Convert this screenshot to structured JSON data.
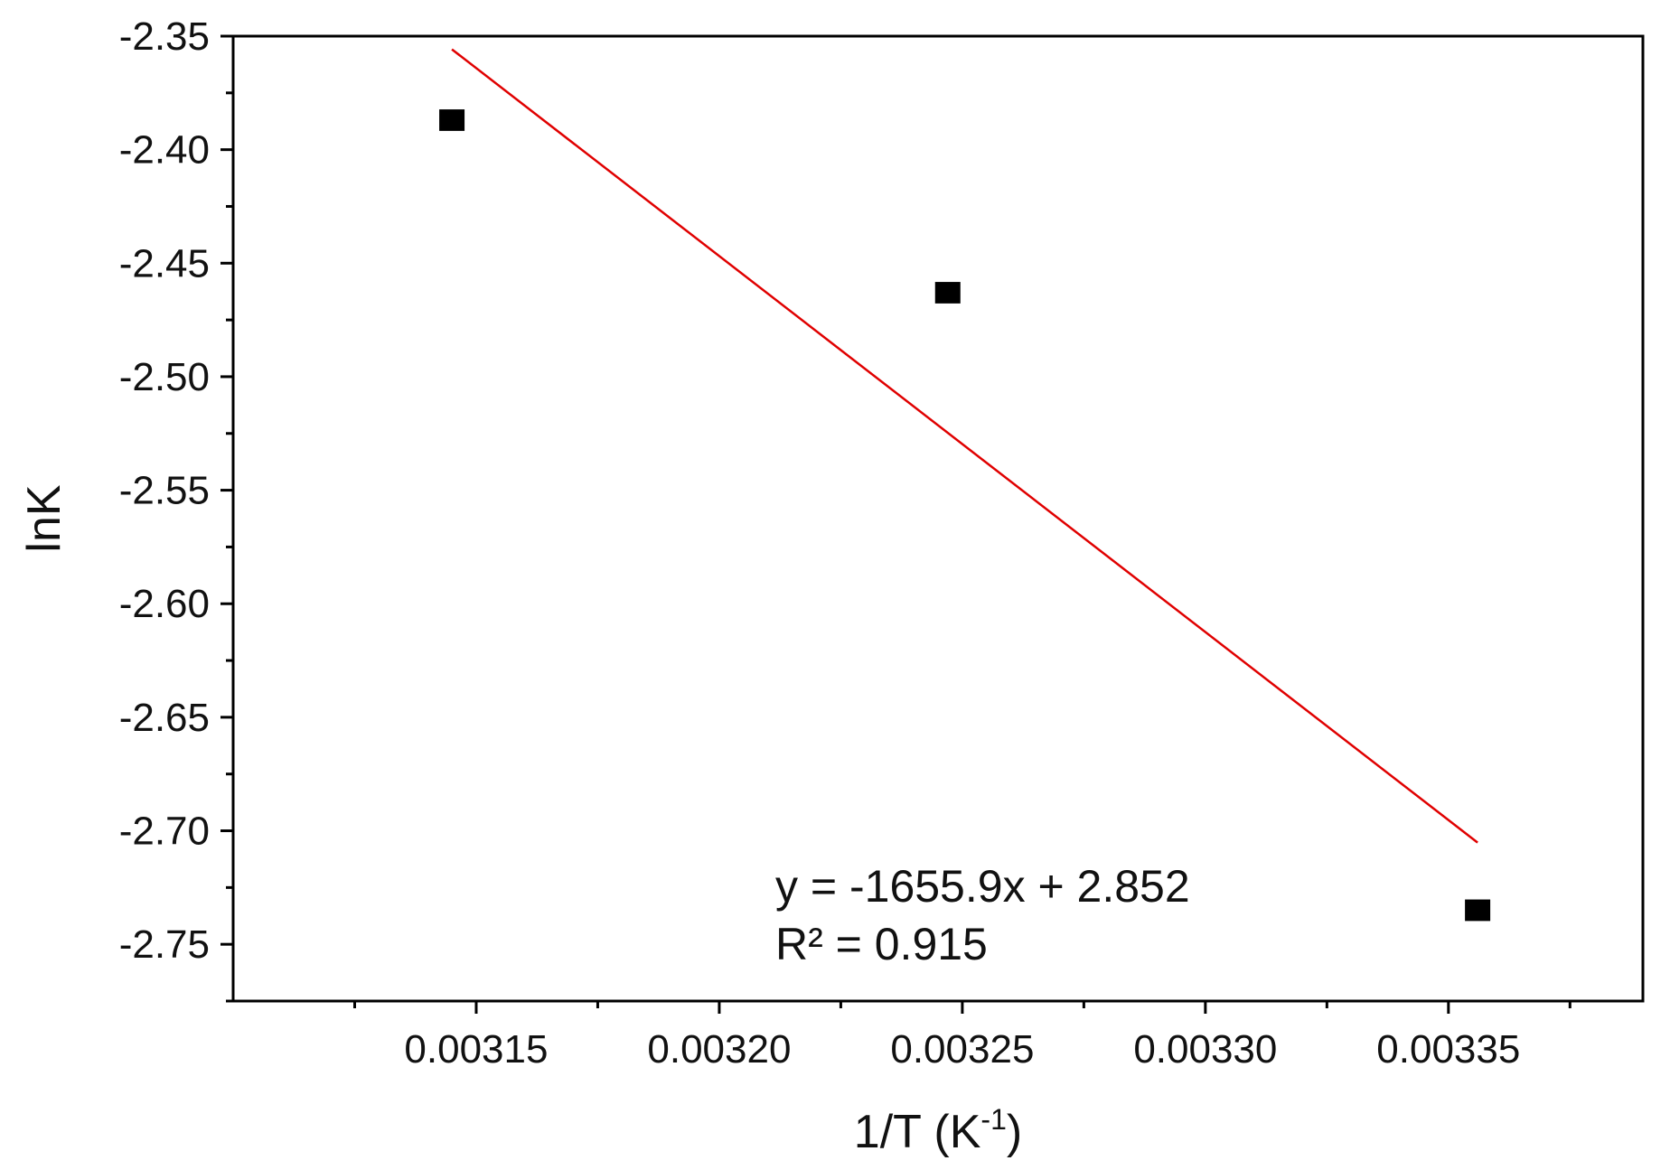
{
  "chart_data": {
    "type": "scatter",
    "title": "",
    "xlabel": "1/T (K",
    "xlabel_superscript": "-1",
    "xlabel_suffix": ")",
    "ylabel": "lnK",
    "xlim": [
      0.0031,
      0.00339
    ],
    "ylim": [
      -2.775,
      -2.35
    ],
    "x_ticks": [
      0.00315,
      0.0032,
      0.00325,
      0.0033,
      0.00335
    ],
    "x_tick_labels": [
      "0.00315",
      "0.00320",
      "0.00325",
      "0.00330",
      "0.00335"
    ],
    "y_ticks": [
      -2.35,
      -2.4,
      -2.45,
      -2.5,
      -2.55,
      -2.6,
      -2.65,
      -2.7,
      -2.75
    ],
    "y_tick_labels": [
      "-2.35",
      "-2.40",
      "-2.45",
      "-2.50",
      "-2.55",
      "-2.60",
      "-2.65",
      "-2.70",
      "-2.75"
    ],
    "grid": false,
    "series": [
      {
        "type": "scatter",
        "marker": "square",
        "color": "#000000",
        "x": [
          0.003145,
          0.003247,
          0.003356
        ],
        "y": [
          -2.387,
          -2.463,
          -2.735
        ]
      }
    ],
    "fit_line": {
      "color": "#e00000",
      "slope": -1655.9,
      "intercept": 2.852,
      "x_range": [
        0.003145,
        0.003356
      ]
    },
    "annotations": [
      "y = -1655.9x + 2.852",
      "R² = 0.915"
    ]
  }
}
